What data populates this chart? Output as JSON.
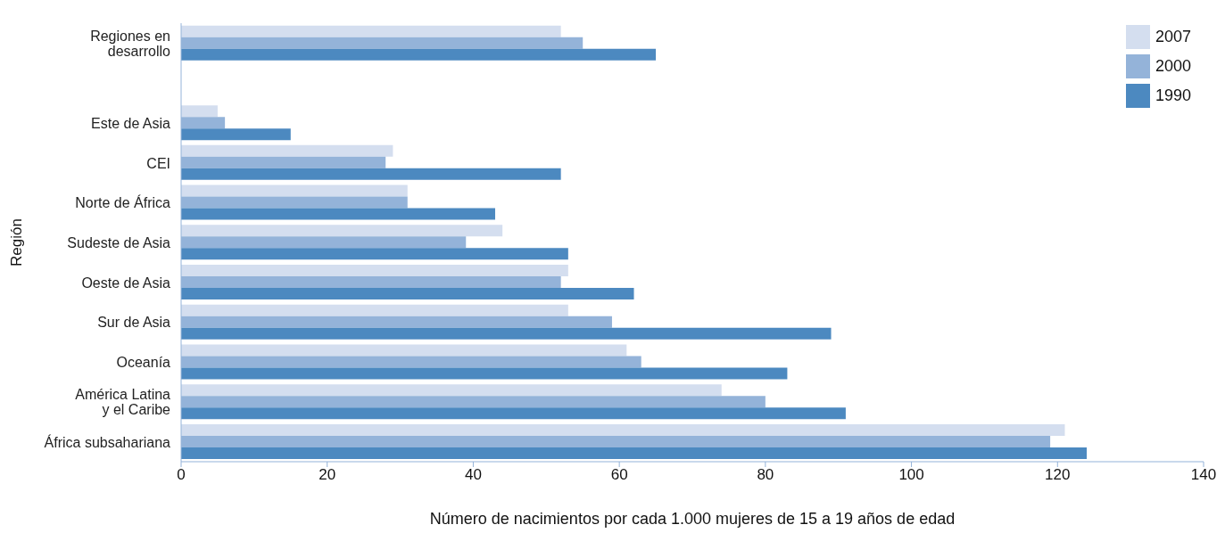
{
  "chart_data": {
    "type": "bar",
    "orientation": "horizontal",
    "xlabel": "Número de nacimientos por cada 1.000 mujeres de 15 a 19 años de edad",
    "ylabel": "Región",
    "categories": [
      "Regiones en\ndesarrollo",
      null,
      "Este de Asia",
      "CEI",
      "Norte de África",
      "Sudeste de Asia",
      "Oeste de Asia",
      "Sur de Asia",
      "Oceanía",
      "América Latina\ny el Caribe",
      "África subsahariana"
    ],
    "series": [
      {
        "name": "2007",
        "color": "#d4deef",
        "values": [
          52,
          null,
          5,
          29,
          31,
          44,
          53,
          53,
          61,
          74,
          121
        ]
      },
      {
        "name": "2000",
        "color": "#94b3d9",
        "values": [
          55,
          null,
          6,
          28,
          31,
          39,
          52,
          59,
          63,
          80,
          119
        ]
      },
      {
        "name": "1990",
        "color": "#4c89c0",
        "values": [
          65,
          null,
          15,
          52,
          43,
          53,
          62,
          89,
          83,
          91,
          124
        ]
      }
    ],
    "xlim": [
      0,
      140
    ],
    "xticks": [
      0,
      20,
      40,
      60,
      80,
      100,
      120,
      140
    ],
    "grid": false,
    "legend": "top right"
  }
}
